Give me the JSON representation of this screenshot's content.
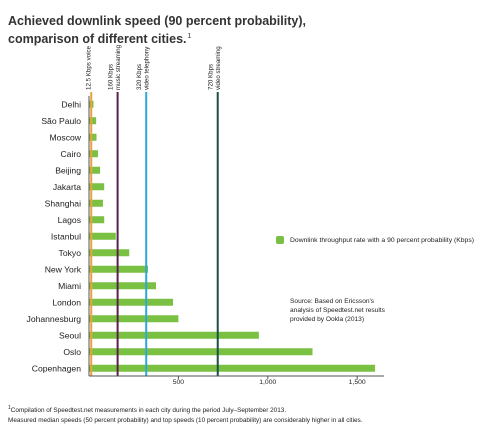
{
  "title_line1": "Achieved downlink speed (90 percent probability),",
  "title_line2": "comparison of different cities.",
  "title_footnote_mark": "1",
  "legend_label": "Downlink throughput rate with a 90 percent probability (Kbps)",
  "source_lines": [
    "Source: Based on Ericsson's",
    "analysis of Speedtest.net results",
    "provided by Ookla (2013)"
  ],
  "footnote_mark": "1",
  "footnote_line1": "Compilation of Speedtest.net measurements in each city during the period July–September 2013.",
  "footnote_line2": "Measured median speeds (50 percent probability) and top speeds (10 percent probability) are considerably higher in all cities.",
  "colors": {
    "bar": "#7ac143",
    "axis": "#555555",
    "voice": "#e8a33d",
    "music": "#5b1f4b",
    "video_telephony": "#2ea8d8",
    "video_streaming": "#1c4f47"
  },
  "chart_data": {
    "type": "bar",
    "orientation": "horizontal",
    "categories": [
      "Delhi",
      "São Paulo",
      "Moscow",
      "Cairo",
      "Beijing",
      "Jakarta",
      "Shanghai",
      "Lagos",
      "Istanbul",
      "Tokyo",
      "New York",
      "Miami",
      "London",
      "Johannesburg",
      "Seoul",
      "Oslo",
      "Copenhagen"
    ],
    "values": [
      25,
      40,
      42,
      50,
      62,
      85,
      78,
      85,
      150,
      225,
      330,
      375,
      470,
      500,
      950,
      1250,
      1600
    ],
    "xlim": [
      0,
      1650
    ],
    "xticks": [
      500,
      1000,
      1500
    ],
    "xtick_labels": [
      "500",
      "1,000",
      "1,500"
    ],
    "reference_lines": [
      {
        "value": 12.5,
        "label_line1": "12.5 Kbps voice",
        "label_line2": "",
        "color_key": "voice"
      },
      {
        "value": 160,
        "label_line1": "160 Kbps",
        "label_line2": "music streaming",
        "color_key": "music"
      },
      {
        "value": 320,
        "label_line1": "320 Kbps",
        "label_line2": "video telephony",
        "color_key": "video_telephony"
      },
      {
        "value": 720,
        "label_line1": "720 Kbps",
        "label_line2": "video streaming",
        "color_key": "video_streaming"
      }
    ],
    "legend_position": "right"
  }
}
